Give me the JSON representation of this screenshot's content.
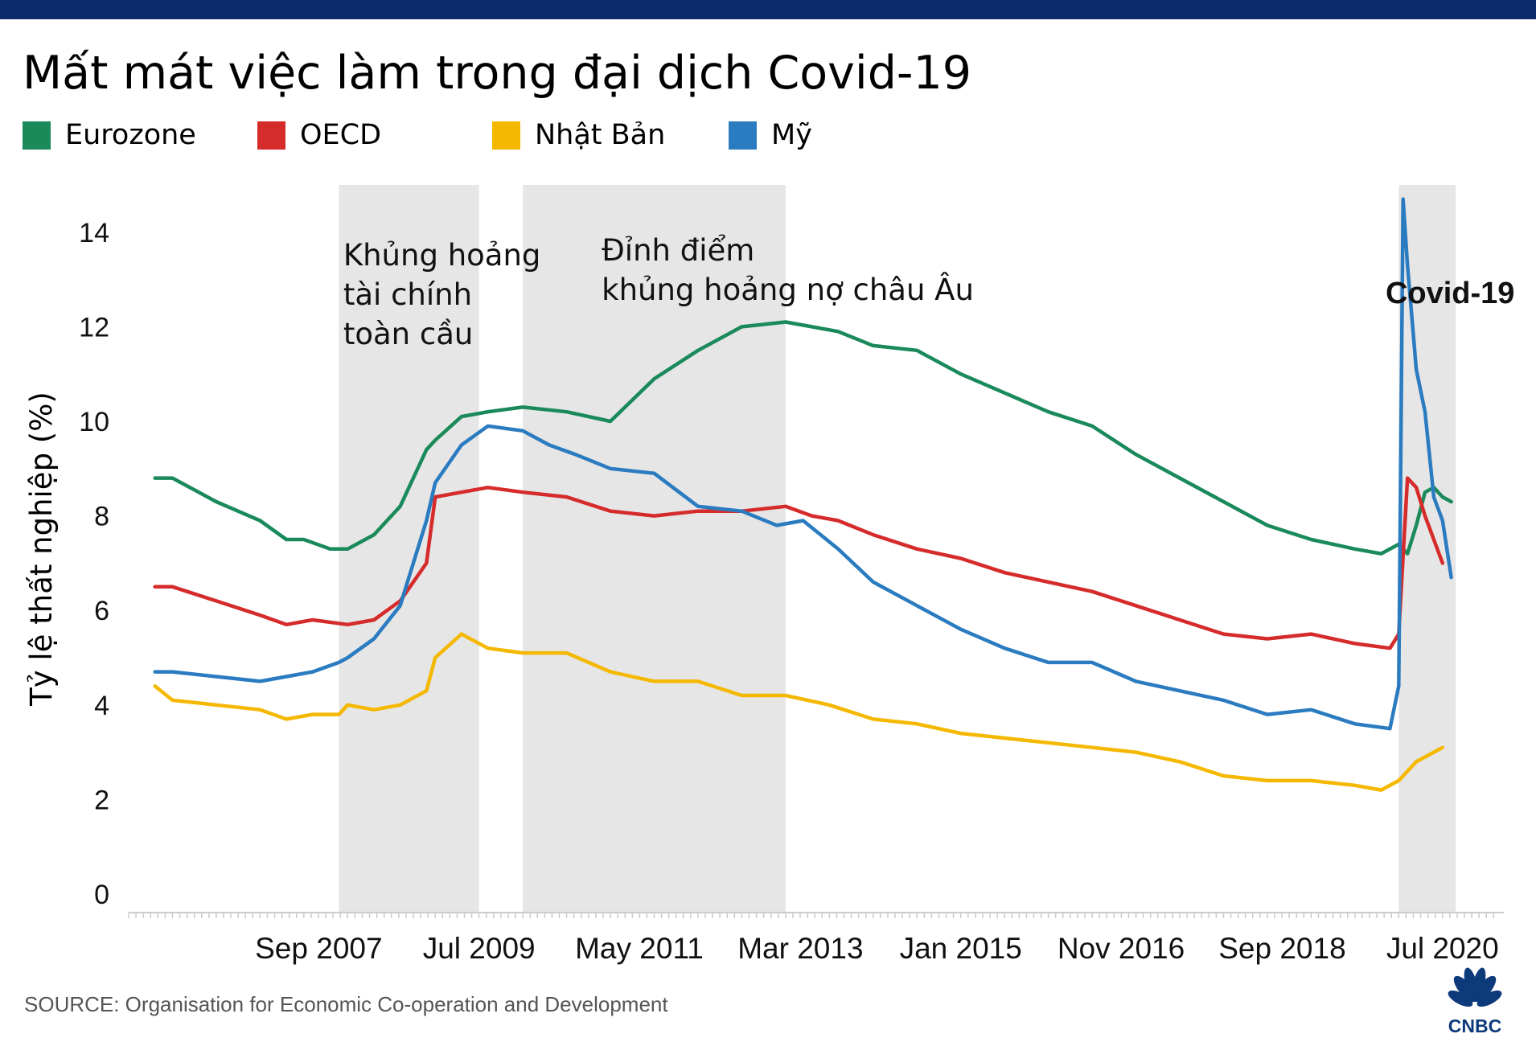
{
  "title": "Mất mát việc làm trong đại dịch Covid-19",
  "legend": [
    {
      "label": "Eurozone",
      "color": "#1a8a5a"
    },
    {
      "label": "OECD",
      "color": "#d62b2b"
    },
    {
      "label": "Nhật Bản",
      "color": "#f5b800"
    },
    {
      "label": "Mỹ",
      "color": "#2a7bc0"
    }
  ],
  "source": "SOURCE: Organisation for Economic Co-operation and Development",
  "logo_text": "CNBC",
  "chart_data": {
    "type": "line",
    "title": "Mất mát việc làm trong đại dịch Covid-19",
    "ylabel": "Tỷ lệ thất nghiệp (%)",
    "xlabel": "",
    "ylim": [
      0,
      15
    ],
    "xlim": [
      2005.5,
      2021.2
    ],
    "yticks": [
      0,
      2,
      4,
      6,
      8,
      10,
      12,
      14
    ],
    "xticks": [
      {
        "label": "Sep 2007",
        "x": 2007.67
      },
      {
        "label": "Jul 2009",
        "x": 2009.5
      },
      {
        "label": "May 2011",
        "x": 2011.33
      },
      {
        "label": "Mar 2013",
        "x": 2013.17
      },
      {
        "label": "Jan 2015",
        "x": 2015.0
      },
      {
        "label": "Nov 2016",
        "x": 2016.83
      },
      {
        "label": "Sep 2018",
        "x": 2018.67
      },
      {
        "label": "Jul 2020",
        "x": 2020.5
      }
    ],
    "shaded_periods": [
      {
        "start": 2007.9,
        "end": 2009.5,
        "label": "Khủng hoảng\ntài chính\ntoàn cầu",
        "label_x": 2007.95,
        "label_y": 13.3
      },
      {
        "start": 2010.0,
        "end": 2013.0,
        "label": "Đỉnh điểm\nkhủng hoảng nợ châu Âu",
        "label_x": 2010.9,
        "label_y": 13.4
      },
      {
        "start": 2020.0,
        "end": 2020.65,
        "label": "Covid-19",
        "label_x": 2019.85,
        "label_y": 12.5
      }
    ],
    "series": [
      {
        "name": "Eurozone",
        "color": "#1a8a5a",
        "x": [
          2005.8,
          2006.0,
          2006.5,
          2007.0,
          2007.3,
          2007.5,
          2007.8,
          2008.0,
          2008.3,
          2008.6,
          2008.9,
          2009.0,
          2009.3,
          2009.6,
          2010.0,
          2010.5,
          2011.0,
          2011.5,
          2012.0,
          2012.5,
          2013.0,
          2013.3,
          2013.6,
          2014.0,
          2014.5,
          2015.0,
          2015.5,
          2016.0,
          2016.5,
          2017.0,
          2017.5,
          2018.0,
          2018.5,
          2019.0,
          2019.5,
          2019.8,
          2020.0,
          2020.1,
          2020.2,
          2020.3,
          2020.4,
          2020.5,
          2020.6
        ],
        "y": [
          8.8,
          8.8,
          8.3,
          7.9,
          7.5,
          7.5,
          7.3,
          7.3,
          7.6,
          8.2,
          9.4,
          9.6,
          10.1,
          10.2,
          10.3,
          10.2,
          10.0,
          10.9,
          11.5,
          12.0,
          12.1,
          12.0,
          11.9,
          11.6,
          11.5,
          11.0,
          10.6,
          10.2,
          9.9,
          9.3,
          8.8,
          8.3,
          7.8,
          7.5,
          7.3,
          7.2,
          7.4,
          7.2,
          7.8,
          8.5,
          8.6,
          8.4,
          8.3
        ]
      },
      {
        "name": "OECD",
        "color": "#d62b2b",
        "x": [
          2005.8,
          2006.0,
          2006.5,
          2007.0,
          2007.3,
          2007.6,
          2008.0,
          2008.3,
          2008.6,
          2008.9,
          2009.0,
          2009.3,
          2009.6,
          2010.0,
          2010.5,
          2011.0,
          2011.5,
          2012.0,
          2012.5,
          2013.0,
          2013.3,
          2013.6,
          2014.0,
          2014.5,
          2015.0,
          2015.5,
          2016.0,
          2016.5,
          2017.0,
          2017.5,
          2018.0,
          2018.5,
          2019.0,
          2019.5,
          2019.9,
          2020.0,
          2020.1,
          2020.2,
          2020.3,
          2020.4,
          2020.5
        ],
        "y": [
          6.5,
          6.5,
          6.2,
          5.9,
          5.7,
          5.8,
          5.7,
          5.8,
          6.2,
          7.0,
          8.4,
          8.5,
          8.6,
          8.5,
          8.4,
          8.1,
          8.0,
          8.1,
          8.1,
          8.2,
          8.0,
          7.9,
          7.6,
          7.3,
          7.1,
          6.8,
          6.6,
          6.4,
          6.1,
          5.8,
          5.5,
          5.4,
          5.5,
          5.3,
          5.2,
          5.5,
          8.8,
          8.6,
          8.0,
          7.5,
          7.0
        ]
      },
      {
        "name": "Nhật Bản",
        "color": "#f5b800",
        "x": [
          2005.8,
          2006.0,
          2006.5,
          2007.0,
          2007.3,
          2007.6,
          2007.9,
          2008.0,
          2008.3,
          2008.6,
          2008.9,
          2009.0,
          2009.3,
          2009.6,
          2010.0,
          2010.5,
          2011.0,
          2011.5,
          2012.0,
          2012.5,
          2013.0,
          2013.5,
          2014.0,
          2014.5,
          2015.0,
          2015.5,
          2016.0,
          2016.5,
          2017.0,
          2017.5,
          2018.0,
          2018.5,
          2019.0,
          2019.5,
          2019.8,
          2020.0,
          2020.1,
          2020.2,
          2020.3,
          2020.4,
          2020.5
        ],
        "y": [
          4.4,
          4.1,
          4.0,
          3.9,
          3.7,
          3.8,
          3.8,
          4.0,
          3.9,
          4.0,
          4.3,
          5.0,
          5.5,
          5.2,
          5.1,
          5.1,
          4.7,
          4.5,
          4.5,
          4.2,
          4.2,
          4.0,
          3.7,
          3.6,
          3.4,
          3.3,
          3.2,
          3.1,
          3.0,
          2.8,
          2.5,
          2.4,
          2.4,
          2.3,
          2.2,
          2.4,
          2.6,
          2.8,
          2.9,
          3.0,
          3.1
        ]
      },
      {
        "name": "Mỹ",
        "color": "#2a7bc0",
        "x": [
          2005.8,
          2006.0,
          2006.5,
          2007.0,
          2007.3,
          2007.6,
          2007.9,
          2008.0,
          2008.3,
          2008.6,
          2008.9,
          2009.0,
          2009.3,
          2009.6,
          2010.0,
          2010.3,
          2010.6,
          2011.0,
          2011.5,
          2012.0,
          2012.5,
          2012.9,
          2013.2,
          2013.6,
          2014.0,
          2014.5,
          2015.0,
          2015.5,
          2016.0,
          2016.5,
          2017.0,
          2017.5,
          2018.0,
          2018.5,
          2019.0,
          2019.5,
          2019.9,
          2020.0,
          2020.05,
          2020.1,
          2020.2,
          2020.3,
          2020.4,
          2020.5,
          2020.6
        ],
        "y": [
          4.7,
          4.7,
          4.6,
          4.5,
          4.6,
          4.7,
          4.9,
          5.0,
          5.4,
          6.1,
          7.9,
          8.7,
          9.5,
          9.9,
          9.8,
          9.5,
          9.3,
          9.0,
          8.9,
          8.2,
          8.1,
          7.8,
          7.9,
          7.3,
          6.6,
          6.1,
          5.6,
          5.2,
          4.9,
          4.9,
          4.5,
          4.3,
          4.1,
          3.8,
          3.9,
          3.6,
          3.5,
          4.4,
          14.7,
          13.3,
          11.1,
          10.2,
          8.4,
          7.9,
          6.7
        ]
      }
    ]
  }
}
